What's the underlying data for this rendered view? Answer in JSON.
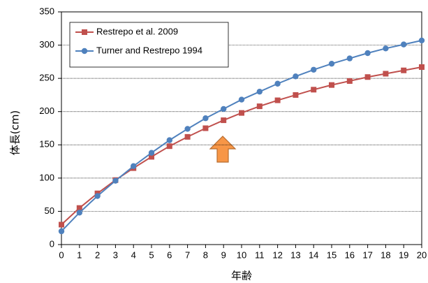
{
  "chart_data": {
    "type": "line",
    "y_label": "体長(cm)",
    "x_label": "年齢",
    "x": [
      0,
      1,
      2,
      3,
      4,
      5,
      6,
      7,
      8,
      9,
      10,
      11,
      12,
      13,
      14,
      15,
      16,
      17,
      18,
      19,
      20
    ],
    "series": [
      {
        "name": "Restrepo et al. 2009",
        "color": "#c0504d",
        "marker": "square",
        "values": [
          30,
          55,
          77,
          97,
          115,
          132,
          148,
          162,
          175,
          187,
          198,
          208,
          217,
          225,
          233,
          240,
          246,
          252,
          257,
          262,
          267
        ]
      },
      {
        "name": "Turner and Restrepo 1994",
        "color": "#4f81bd",
        "marker": "circle",
        "values": [
          20,
          48,
          73,
          96,
          118,
          138,
          157,
          174,
          190,
          204,
          218,
          230,
          242,
          253,
          263,
          272,
          280,
          288,
          295,
          301,
          307
        ]
      }
    ],
    "xlim": [
      0,
      20
    ],
    "xticks": [
      0,
      1,
      2,
      3,
      4,
      5,
      6,
      7,
      8,
      9,
      10,
      11,
      12,
      13,
      14,
      15,
      16,
      17,
      18,
      19,
      20
    ],
    "ylim": [
      0,
      350
    ],
    "yticks": [
      0,
      50,
      100,
      150,
      200,
      250,
      300,
      350
    ],
    "grid": true,
    "legend": "upper left"
  }
}
